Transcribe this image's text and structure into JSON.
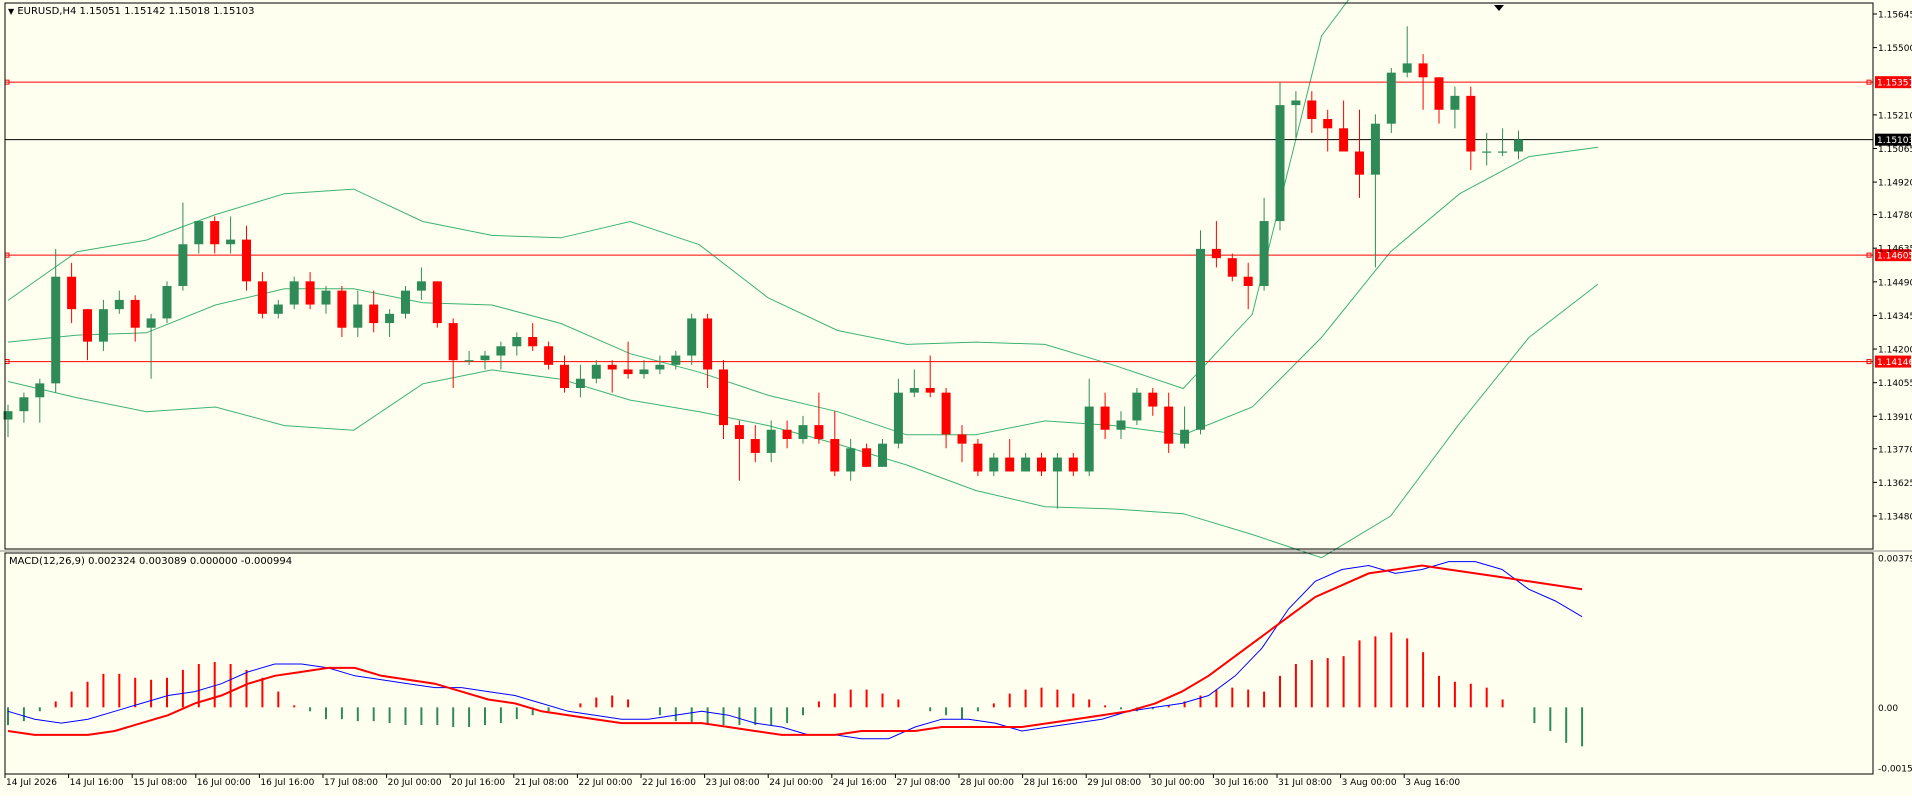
{
  "chart_header": {
    "symbol_label": "EURUSD,H4",
    "ohlc": "1.15051 1.15142 1.15018 1.15103"
  },
  "macd_header": {
    "label": "MACD(12,26,9) 0.002324 0.003089 0.000000 -0.000994"
  },
  "colors": {
    "background": "#fffff0",
    "bull": "#2e8b57",
    "bear": "#ff0000",
    "band": "#3cb371",
    "level_line": "#ff0000",
    "price_line": "#000000",
    "macd_line": "#0000ff",
    "signal_line": "#ff0000"
  },
  "chart_data": [
    {
      "type": "candlestick",
      "title": "EURUSD,H4",
      "x_tick_labels": [
        "14 Jul 2026",
        "14 Jul 16:00",
        "15 Jul 08:00",
        "16 Jul 00:00",
        "16 Jul 16:00",
        "17 Jul 08:00",
        "20 Jul 00:00",
        "20 Jul 16:00",
        "21 Jul 08:00",
        "22 Jul 00:00",
        "22 Jul 16:00",
        "23 Jul 08:00",
        "24 Jul 00:00",
        "24 Jul 16:00",
        "27 Jul 08:00",
        "28 Jul 00:00",
        "28 Jul 16:00",
        "29 Jul 08:00",
        "30 Jul 00:00",
        "30 Jul 16:00",
        "31 Jul 08:00",
        "3 Aug 00:00",
        "3 Aug 16:00"
      ],
      "y_tick_labels": [
        "1.15645",
        "1.15500",
        "1.15210",
        "1.15065",
        "1.14920",
        "1.14780",
        "1.14635",
        "1.14490",
        "1.14345",
        "1.14200",
        "1.14055",
        "1.13910",
        "1.13770",
        "1.13625",
        "1.13480"
      ],
      "ylim": [
        1.1348,
        1.15645
      ],
      "levels": [
        {
          "label": "1.15351",
          "value": 1.15351,
          "type": "horizontal"
        },
        {
          "label": "1.14605",
          "value": 1.14605,
          "type": "horizontal"
        },
        {
          "label": "1.14146",
          "value": 1.14146,
          "type": "horizontal"
        }
      ],
      "current_price": {
        "label": "1.15103",
        "value": 1.15103
      },
      "bollinger": {
        "upper": [
          1.1441,
          1.1462,
          1.1467,
          1.1478,
          1.1487,
          1.1489,
          1.1475,
          1.1469,
          1.1468,
          1.1475,
          1.1465,
          1.1442,
          1.1428,
          1.1422,
          1.1423,
          1.1422,
          1.1413,
          1.1403,
          1.1435,
          1.1555,
          1.1595,
          1.1605,
          1.1595,
          1.1585
        ],
        "middle": [
          1.1423,
          1.1426,
          1.1427,
          1.1439,
          1.1446,
          1.1446,
          1.144,
          1.1439,
          1.1431,
          1.1418,
          1.141,
          1.14,
          1.1393,
          1.1383,
          1.1383,
          1.1389,
          1.1387,
          1.1383,
          1.1395,
          1.1425,
          1.1462,
          1.1487,
          1.1503,
          1.1507
        ],
        "lower": [
          1.1406,
          1.1399,
          1.1393,
          1.1395,
          1.1387,
          1.1385,
          1.1405,
          1.1411,
          1.1407,
          1.1398,
          1.1393,
          1.1387,
          1.1379,
          1.137,
          1.1359,
          1.1352,
          1.1351,
          1.1349,
          1.134,
          1.133,
          1.1348,
          1.1388,
          1.1425,
          1.1448
        ]
      },
      "candles": [
        {
          "o": 1.13896,
          "h": 1.1396,
          "l": 1.1382,
          "c": 1.13932
        },
        {
          "o": 1.13932,
          "h": 1.14012,
          "l": 1.13882,
          "c": 1.13992
        },
        {
          "o": 1.13992,
          "h": 1.14072,
          "l": 1.13882,
          "c": 1.14052
        },
        {
          "o": 1.14052,
          "h": 1.14632,
          "l": 1.14012,
          "c": 1.14512
        },
        {
          "o": 1.14512,
          "h": 1.14572,
          "l": 1.14312,
          "c": 1.14372
        },
        {
          "o": 1.14372,
          "h": 1.14372,
          "l": 1.14152,
          "c": 1.14232
        },
        {
          "o": 1.14232,
          "h": 1.14412,
          "l": 1.14192,
          "c": 1.14372
        },
        {
          "o": 1.14372,
          "h": 1.14452,
          "l": 1.14352,
          "c": 1.14412
        },
        {
          "o": 1.14412,
          "h": 1.14432,
          "l": 1.14232,
          "c": 1.14292
        },
        {
          "o": 1.14292,
          "h": 1.14352,
          "l": 1.14072,
          "c": 1.14332
        },
        {
          "o": 1.14332,
          "h": 1.14492,
          "l": 1.14312,
          "c": 1.14472
        },
        {
          "o": 1.14472,
          "h": 1.14832,
          "l": 1.14452,
          "c": 1.14652
        },
        {
          "o": 1.14652,
          "h": 1.14752,
          "l": 1.14612,
          "c": 1.14752
        },
        {
          "o": 1.14752,
          "h": 1.14772,
          "l": 1.14612,
          "c": 1.14652
        },
        {
          "o": 1.14652,
          "h": 1.14772,
          "l": 1.14612,
          "c": 1.14672
        },
        {
          "o": 1.14672,
          "h": 1.14732,
          "l": 1.14452,
          "c": 1.14492
        },
        {
          "o": 1.14492,
          "h": 1.14532,
          "l": 1.14332,
          "c": 1.14352
        },
        {
          "o": 1.14352,
          "h": 1.14412,
          "l": 1.14332,
          "c": 1.14392
        },
        {
          "o": 1.14392,
          "h": 1.14512,
          "l": 1.14372,
          "c": 1.14492
        },
        {
          "o": 1.14492,
          "h": 1.14532,
          "l": 1.14372,
          "c": 1.14392
        },
        {
          "o": 1.14392,
          "h": 1.14472,
          "l": 1.14352,
          "c": 1.14452
        },
        {
          "o": 1.14452,
          "h": 1.14472,
          "l": 1.14252,
          "c": 1.14292
        },
        {
          "o": 1.14292,
          "h": 1.14452,
          "l": 1.14252,
          "c": 1.14392
        },
        {
          "o": 1.14392,
          "h": 1.14452,
          "l": 1.14272,
          "c": 1.14312
        },
        {
          "o": 1.14312,
          "h": 1.14372,
          "l": 1.14252,
          "c": 1.14352
        },
        {
          "o": 1.14352,
          "h": 1.14472,
          "l": 1.14332,
          "c": 1.14452
        },
        {
          "o": 1.14452,
          "h": 1.14552,
          "l": 1.14412,
          "c": 1.14492
        },
        {
          "o": 1.14492,
          "h": 1.14492,
          "l": 1.14292,
          "c": 1.14312
        },
        {
          "o": 1.14312,
          "h": 1.14332,
          "l": 1.14032,
          "c": 1.14152
        },
        {
          "o": 1.14152,
          "h": 1.14192,
          "l": 1.14132,
          "c": 1.14152
        },
        {
          "o": 1.14152,
          "h": 1.14192,
          "l": 1.14112,
          "c": 1.14172
        },
        {
          "o": 1.14172,
          "h": 1.14232,
          "l": 1.14112,
          "c": 1.14212
        },
        {
          "o": 1.14212,
          "h": 1.14272,
          "l": 1.14172,
          "c": 1.14252
        },
        {
          "o": 1.14252,
          "h": 1.14312,
          "l": 1.14192,
          "c": 1.14212
        },
        {
          "o": 1.14212,
          "h": 1.14232,
          "l": 1.14112,
          "c": 1.14132
        },
        {
          "o": 1.14132,
          "h": 1.14172,
          "l": 1.14012,
          "c": 1.14032
        },
        {
          "o": 1.14032,
          "h": 1.14132,
          "l": 1.13992,
          "c": 1.14072
        },
        {
          "o": 1.14072,
          "h": 1.14152,
          "l": 1.14052,
          "c": 1.14132
        },
        {
          "o": 1.14132,
          "h": 1.14152,
          "l": 1.14012,
          "c": 1.14112
        },
        {
          "o": 1.14112,
          "h": 1.14232,
          "l": 1.14072,
          "c": 1.14092
        },
        {
          "o": 1.14092,
          "h": 1.14152,
          "l": 1.14072,
          "c": 1.14112
        },
        {
          "o": 1.14112,
          "h": 1.14172,
          "l": 1.14092,
          "c": 1.14132
        },
        {
          "o": 1.14132,
          "h": 1.14192,
          "l": 1.14112,
          "c": 1.14172
        },
        {
          "o": 1.14172,
          "h": 1.14352,
          "l": 1.14132,
          "c": 1.14332
        },
        {
          "o": 1.14332,
          "h": 1.14352,
          "l": 1.14032,
          "c": 1.14112
        },
        {
          "o": 1.14112,
          "h": 1.14152,
          "l": 1.13812,
          "c": 1.13872
        },
        {
          "o": 1.13872,
          "h": 1.13892,
          "l": 1.13632,
          "c": 1.13812
        },
        {
          "o": 1.13812,
          "h": 1.13872,
          "l": 1.13712,
          "c": 1.13752
        },
        {
          "o": 1.13752,
          "h": 1.13892,
          "l": 1.13712,
          "c": 1.13852
        },
        {
          "o": 1.13852,
          "h": 1.13892,
          "l": 1.13772,
          "c": 1.13812
        },
        {
          "o": 1.13812,
          "h": 1.13912,
          "l": 1.13792,
          "c": 1.13872
        },
        {
          "o": 1.13872,
          "h": 1.14012,
          "l": 1.13792,
          "c": 1.13812
        },
        {
          "o": 1.13812,
          "h": 1.13932,
          "l": 1.13652,
          "c": 1.13672
        },
        {
          "o": 1.13672,
          "h": 1.13812,
          "l": 1.13632,
          "c": 1.13772
        },
        {
          "o": 1.13772,
          "h": 1.13792,
          "l": 1.13692,
          "c": 1.13692
        },
        {
          "o": 1.13692,
          "h": 1.13812,
          "l": 1.13692,
          "c": 1.13792
        },
        {
          "o": 1.13792,
          "h": 1.14072,
          "l": 1.13772,
          "c": 1.14012
        },
        {
          "o": 1.14012,
          "h": 1.14112,
          "l": 1.13992,
          "c": 1.14032
        },
        {
          "o": 1.14032,
          "h": 1.14172,
          "l": 1.13992,
          "c": 1.14012
        },
        {
          "o": 1.14012,
          "h": 1.14032,
          "l": 1.13772,
          "c": 1.13832
        },
        {
          "o": 1.13832,
          "h": 1.13872,
          "l": 1.13712,
          "c": 1.13792
        },
        {
          "o": 1.13792,
          "h": 1.13812,
          "l": 1.13652,
          "c": 1.13672
        },
        {
          "o": 1.13672,
          "h": 1.13752,
          "l": 1.13652,
          "c": 1.13732
        },
        {
          "o": 1.13732,
          "h": 1.13812,
          "l": 1.13672,
          "c": 1.13672
        },
        {
          "o": 1.13672,
          "h": 1.13752,
          "l": 1.13672,
          "c": 1.13732
        },
        {
          "o": 1.13732,
          "h": 1.13752,
          "l": 1.13652,
          "c": 1.13672
        },
        {
          "o": 1.13672,
          "h": 1.13752,
          "l": 1.13512,
          "c": 1.13732
        },
        {
          "o": 1.13732,
          "h": 1.13752,
          "l": 1.13652,
          "c": 1.13672
        },
        {
          "o": 1.13672,
          "h": 1.14072,
          "l": 1.13652,
          "c": 1.13952
        },
        {
          "o": 1.13952,
          "h": 1.14012,
          "l": 1.13812,
          "c": 1.13852
        },
        {
          "o": 1.13852,
          "h": 1.13932,
          "l": 1.13812,
          "c": 1.13892
        },
        {
          "o": 1.13892,
          "h": 1.14032,
          "l": 1.13872,
          "c": 1.14012
        },
        {
          "o": 1.14012,
          "h": 1.14032,
          "l": 1.13912,
          "c": 1.13952
        },
        {
          "o": 1.13952,
          "h": 1.14012,
          "l": 1.13752,
          "c": 1.13792
        },
        {
          "o": 1.13792,
          "h": 1.13952,
          "l": 1.13772,
          "c": 1.13852
        },
        {
          "o": 1.13852,
          "h": 1.14712,
          "l": 1.13832,
          "c": 1.14632
        },
        {
          "o": 1.14632,
          "h": 1.14752,
          "l": 1.14552,
          "c": 1.14592
        },
        {
          "o": 1.14592,
          "h": 1.14612,
          "l": 1.14492,
          "c": 1.14512
        },
        {
          "o": 1.14512,
          "h": 1.14572,
          "l": 1.14372,
          "c": 1.14472
        },
        {
          "o": 1.14472,
          "h": 1.14852,
          "l": 1.14452,
          "c": 1.14752
        },
        {
          "o": 1.14752,
          "h": 1.15352,
          "l": 1.14712,
          "c": 1.15252
        },
        {
          "o": 1.15252,
          "h": 1.15312,
          "l": 1.15112,
          "c": 1.15272
        },
        {
          "o": 1.15272,
          "h": 1.15312,
          "l": 1.15132,
          "c": 1.15192
        },
        {
          "o": 1.15192,
          "h": 1.15232,
          "l": 1.15052,
          "c": 1.15152
        },
        {
          "o": 1.15152,
          "h": 1.15272,
          "l": 1.15052,
          "c": 1.15052
        },
        {
          "o": 1.15052,
          "h": 1.15232,
          "l": 1.14852,
          "c": 1.14952
        },
        {
          "o": 1.14952,
          "h": 1.15212,
          "l": 1.14552,
          "c": 1.15172
        },
        {
          "o": 1.15172,
          "h": 1.15412,
          "l": 1.15132,
          "c": 1.15392
        },
        {
          "o": 1.15392,
          "h": 1.15592,
          "l": 1.15372,
          "c": 1.15432
        },
        {
          "o": 1.15432,
          "h": 1.15472,
          "l": 1.15232,
          "c": 1.15372
        },
        {
          "o": 1.15372,
          "h": 1.15372,
          "l": 1.15172,
          "c": 1.15232
        },
        {
          "o": 1.15232,
          "h": 1.15332,
          "l": 1.15152,
          "c": 1.15292
        },
        {
          "o": 1.15292,
          "h": 1.15332,
          "l": 1.14972,
          "c": 1.15052
        },
        {
          "o": 1.15052,
          "h": 1.15132,
          "l": 1.14992,
          "c": 1.15052
        },
        {
          "o": 1.15052,
          "h": 1.15152,
          "l": 1.15032,
          "c": 1.15052
        },
        {
          "o": 1.15052,
          "h": 1.15142,
          "l": 1.15018,
          "c": 1.15103
        }
      ]
    },
    {
      "type": "macd",
      "title": "MACD(12,26,9)",
      "y_tick_labels": [
        "0.003791",
        "0.00",
        "-0.00154"
      ],
      "ylim": [
        -0.00154,
        0.003791
      ],
      "macd": [
        -0.0001,
        -0.0003,
        -0.0004,
        -0.0003,
        -0.0001,
        0.0001,
        0.0003,
        0.0004,
        0.0006,
        0.0009,
        0.0011,
        0.0011,
        0.001,
        0.0008,
        0.0007,
        0.0006,
        0.0005,
        0.0005,
        0.0004,
        0.0003,
        0.0001,
        -0.0001,
        -0.0002,
        -0.0003,
        -0.0003,
        -0.0002,
        -0.0001,
        -0.0002,
        -0.0004,
        -0.0005,
        -0.0007,
        -0.0007,
        -0.0008,
        -0.0008,
        -0.0005,
        -0.0003,
        -0.0003,
        -0.0004,
        -0.0006,
        -0.0005,
        -0.0004,
        -0.0003,
        -0.0001,
        0.0,
        0.0001,
        0.0003,
        0.0008,
        0.0015,
        0.0025,
        0.0032,
        0.0035,
        0.0036,
        0.0034,
        0.0035,
        0.0037,
        0.0037,
        0.0035,
        0.003,
        0.0027,
        0.0023
      ],
      "signal": [
        -0.0006,
        -0.0007,
        -0.0007,
        -0.0007,
        -0.0006,
        -0.0004,
        -0.0002,
        0.0001,
        0.0003,
        0.0006,
        0.0008,
        0.0009,
        0.001,
        0.001,
        0.0008,
        0.0007,
        0.0006,
        0.0004,
        0.0002,
        0.0001,
        -0.0001,
        -0.0002,
        -0.0003,
        -0.0004,
        -0.0004,
        -0.0004,
        -0.0004,
        -0.0005,
        -0.0006,
        -0.0007,
        -0.0007,
        -0.0007,
        -0.0006,
        -0.0006,
        -0.0006,
        -0.0005,
        -0.0005,
        -0.0005,
        -0.0005,
        -0.0004,
        -0.0003,
        -0.0002,
        -0.0001,
        0.0001,
        0.0004,
        0.0008,
        0.0013,
        0.0018,
        0.0023,
        0.0028,
        0.0031,
        0.0034,
        0.0035,
        0.0036,
        0.0035,
        0.0034,
        0.0033,
        0.0032,
        0.0031,
        0.003
      ],
      "histogram": [
        -0.00045,
        -0.00035,
        -0.0001,
        0.00015,
        0.0004,
        0.00065,
        0.00085,
        0.00085,
        0.00075,
        0.0007,
        0.00075,
        0.00095,
        0.0011,
        0.00115,
        0.0011,
        0.00095,
        0.00075,
        0.0004,
        5e-05,
        -0.0001,
        -0.0003,
        -0.0003,
        -0.00035,
        -0.00035,
        -0.0004,
        -0.00045,
        -0.00045,
        -0.00045,
        -0.0005,
        -0.0005,
        -0.00045,
        -0.0004,
        -0.0003,
        -0.0002,
        -0.0001,
        0.0,
        0.0001,
        0.00025,
        0.0003,
        0.0002,
        0.0,
        -0.0002,
        -0.00035,
        -0.0004,
        -0.00045,
        -0.00045,
        -0.00045,
        -0.00045,
        -0.00045,
        -0.0004,
        -0.0002,
        0.00015,
        0.00035,
        0.00045,
        0.00045,
        0.00035,
        0.0002,
        0.0,
        -0.0001,
        -0.0002,
        -0.0003,
        -0.0001,
        0.0001,
        0.00035,
        0.00045,
        0.0005,
        0.00045,
        0.00035,
        0.0002,
        5e-05,
        -5e-05,
        -0.0001,
        -5e-05,
        5e-05,
        0.00015,
        0.0003,
        0.00045,
        0.0005,
        0.00045,
        0.0004,
        0.0008,
        0.0011,
        0.0012,
        0.00125,
        0.0013,
        0.0017,
        0.0018,
        0.0019,
        0.00175,
        0.0014,
        0.0008,
        0.00065,
        0.0006,
        0.0005,
        0.0002,
        0.0,
        -0.0004,
        -0.0006,
        -0.0009,
        -0.00099
      ]
    }
  ]
}
